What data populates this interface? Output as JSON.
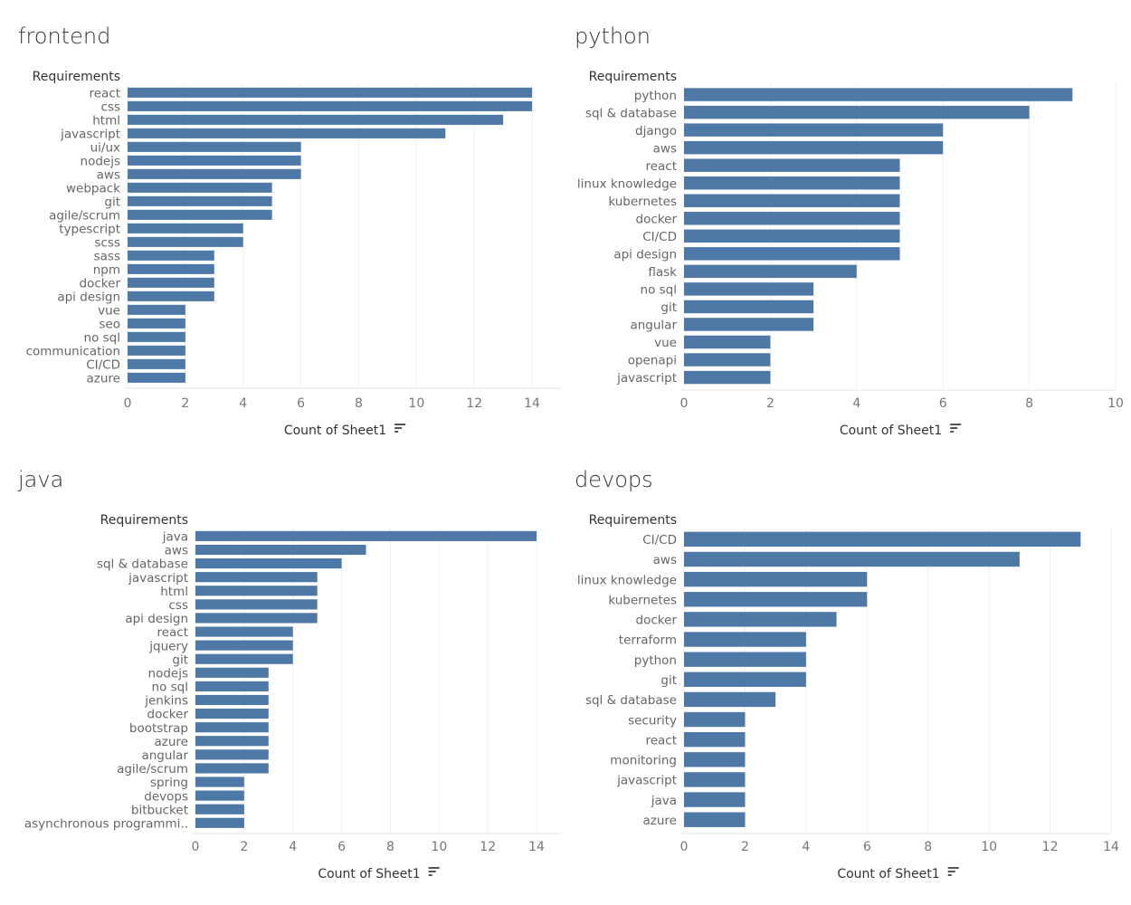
{
  "bar_color": "#4e79a7",
  "chart_data": [
    {
      "type": "bar",
      "orientation": "horizontal",
      "title": "frontend",
      "row_header": "Requirements",
      "xlabel": "Count of Sheet1",
      "sort_icon": "sort-descending-icon",
      "xlim": [
        0,
        15
      ],
      "xticks": [
        0,
        2,
        4,
        6,
        8,
        10,
        12,
        14
      ],
      "grid": true,
      "categories": [
        "react",
        "css",
        "html",
        "javascript",
        "ui/ux",
        "nodejs",
        "aws",
        "webpack",
        "git",
        "agile/scrum",
        "typescript",
        "scss",
        "sass",
        "npm",
        "docker",
        "api design",
        "vue",
        "seo",
        "no sql",
        "communication",
        "CI/CD",
        "azure"
      ],
      "values": [
        14,
        14,
        13,
        11,
        6,
        6,
        6,
        5,
        5,
        5,
        4,
        4,
        3,
        3,
        3,
        3,
        2,
        2,
        2,
        2,
        2,
        2
      ]
    },
    {
      "type": "bar",
      "orientation": "horizontal",
      "title": "python",
      "row_header": "Requirements",
      "xlabel": "Count of Sheet1",
      "sort_icon": "sort-descending-icon",
      "xlim": [
        0,
        10
      ],
      "xticks": [
        0,
        2,
        4,
        6,
        8,
        10
      ],
      "grid": true,
      "categories": [
        "python",
        "sql & database",
        "django",
        "aws",
        "react",
        "linux knowledge",
        "kubernetes",
        "docker",
        "CI/CD",
        "api design",
        "flask",
        "no sql",
        "git",
        "angular",
        "vue",
        "openapi",
        "javascript"
      ],
      "values": [
        9,
        8,
        6,
        6,
        5,
        5,
        5,
        5,
        5,
        5,
        4,
        3,
        3,
        3,
        2,
        2,
        2
      ]
    },
    {
      "type": "bar",
      "orientation": "horizontal",
      "title": "java",
      "row_header": "Requirements",
      "xlabel": "Count of Sheet1",
      "sort_icon": "sort-descending-icon",
      "xlim": [
        0,
        15
      ],
      "xticks": [
        0,
        2,
        4,
        6,
        8,
        10,
        12,
        14
      ],
      "grid": true,
      "categories": [
        "java",
        "aws",
        "sql & database",
        "javascript",
        "html",
        "css",
        "api design",
        "react",
        "jquery",
        "git",
        "nodejs",
        "no sql",
        "jenkins",
        "docker",
        "bootstrap",
        "azure",
        "angular",
        "agile/scrum",
        "spring",
        "devops",
        "bitbucket",
        "asynchronous programmi.."
      ],
      "values": [
        14,
        7,
        6,
        5,
        5,
        5,
        5,
        4,
        4,
        4,
        3,
        3,
        3,
        3,
        3,
        3,
        3,
        3,
        2,
        2,
        2,
        2
      ]
    },
    {
      "type": "bar",
      "orientation": "horizontal",
      "title": "devops",
      "row_header": "Requirements",
      "xlabel": "Count of Sheet1",
      "sort_icon": "sort-descending-icon",
      "xlim": [
        0,
        14
      ],
      "xticks": [
        0,
        2,
        4,
        6,
        8,
        10,
        12,
        14
      ],
      "grid": true,
      "categories": [
        "CI/CD",
        "aws",
        "linux knowledge",
        "kubernetes",
        "docker",
        "terraform",
        "python",
        "git",
        "sql & database",
        "security",
        "react",
        "monitoring",
        "javascript",
        "java",
        "azure"
      ],
      "values": [
        13,
        11,
        6,
        6,
        5,
        4,
        4,
        4,
        3,
        2,
        2,
        2,
        2,
        2,
        2
      ]
    }
  ]
}
